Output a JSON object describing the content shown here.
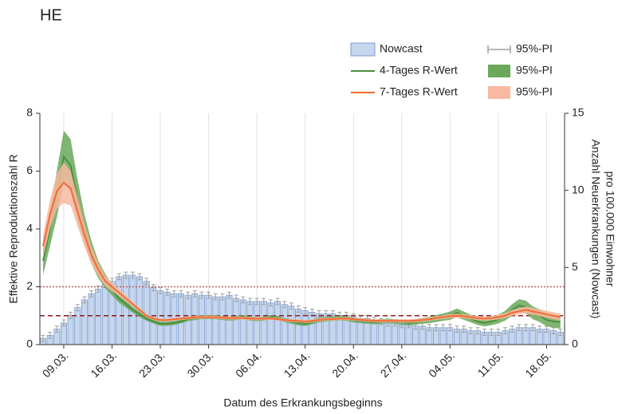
{
  "chart_data": {
    "type": "combo",
    "title": "HE",
    "x_label": "Datum des Erkrankungsbeginns",
    "y_label": "Effektive Reproduktionszahl R",
    "y2_label": [
      "Anzahl Neuerkrankungen (Nowcast)",
      "pro 100.000 Einwohner"
    ],
    "categories": [
      null,
      null,
      null,
      "09.03.",
      null,
      null,
      null,
      null,
      null,
      null,
      "16.03.",
      null,
      null,
      null,
      null,
      null,
      null,
      "23.03.",
      null,
      null,
      null,
      null,
      null,
      null,
      "30.03.",
      null,
      null,
      null,
      null,
      null,
      null,
      "06.04.",
      null,
      null,
      null,
      null,
      null,
      null,
      "13.04.",
      null,
      null,
      null,
      null,
      null,
      null,
      "20.04.",
      null,
      null,
      null,
      null,
      null,
      null,
      "27.04.",
      null,
      null,
      null,
      null,
      null,
      null,
      "04.05.",
      null,
      null,
      null,
      null,
      null,
      null,
      "11.05.",
      null,
      null,
      null,
      null,
      null,
      null,
      "18.05.",
      null,
      null
    ],
    "ylim": [
      0,
      8
    ],
    "yticks": [
      0,
      2,
      4,
      6,
      8
    ],
    "y2lim": [
      0,
      15
    ],
    "y2ticks": [
      0,
      5,
      10,
      15
    ],
    "grid": true,
    "hlines": [
      {
        "value": 2,
        "style": "dotted",
        "color": "#b8605a"
      },
      {
        "value": 1,
        "style": "dashed",
        "color": "#8b1a1a"
      }
    ],
    "series": [
      {
        "name": "Nowcast",
        "type": "bar",
        "axis": "y2",
        "color": "#c5d6ee",
        "error_name": "95%-PI",
        "error_color": "#a0a0a0",
        "values": [
          0.4,
          0.6,
          1.0,
          1.4,
          1.9,
          2.4,
          2.9,
          3.3,
          3.6,
          3.9,
          4.1,
          4.4,
          4.5,
          4.5,
          4.4,
          4.1,
          3.7,
          3.5,
          3.4,
          3.3,
          3.3,
          3.2,
          3.3,
          3.2,
          3.2,
          3.1,
          3.1,
          3.2,
          3.0,
          2.9,
          2.8,
          2.8,
          2.8,
          2.7,
          2.8,
          2.6,
          2.5,
          2.3,
          2.2,
          2.1,
          2.0,
          2.0,
          2.0,
          1.9,
          1.9,
          1.8,
          1.7,
          1.7,
          1.6,
          1.5,
          1.4,
          1.4,
          1.3,
          1.3,
          1.2,
          1.2,
          1.1,
          1.1,
          1.1,
          1.1,
          1.0,
          1.0,
          0.9,
          0.9,
          0.8,
          0.8,
          0.8,
          0.9,
          1.0,
          1.1,
          1.1,
          1.1,
          1.0,
          1.0,
          0.9,
          0.8
        ],
        "error": [
          0.2,
          0.2,
          0.2,
          0.2,
          0.2,
          0.2,
          0.2,
          0.2,
          0.2,
          0.2,
          0.2,
          0.2,
          0.2,
          0.2,
          0.2,
          0.2,
          0.2,
          0.2,
          0.2,
          0.2,
          0.2,
          0.2,
          0.2,
          0.2,
          0.2,
          0.2,
          0.2,
          0.2,
          0.2,
          0.2,
          0.2,
          0.2,
          0.2,
          0.2,
          0.2,
          0.2,
          0.2,
          0.2,
          0.2,
          0.2,
          0.2,
          0.2,
          0.2,
          0.2,
          0.2,
          0.2,
          0.2,
          0.2,
          0.2,
          0.2,
          0.2,
          0.2,
          0.2,
          0.2,
          0.2,
          0.2,
          0.2,
          0.2,
          0.2,
          0.2,
          0.2,
          0.2,
          0.2,
          0.2,
          0.2,
          0.2,
          0.2,
          0.2,
          0.2,
          0.2,
          0.2,
          0.2,
          0.2,
          0.2,
          0.2,
          0.2
        ]
      },
      {
        "name": "4-Tages R-Wert",
        "type": "line",
        "color": "#4c8f3c",
        "band_color": "#6aa85a",
        "band_name": "95%-PI",
        "values": [
          2.9,
          4.0,
          5.2,
          6.5,
          6.2,
          5.0,
          4.0,
          3.2,
          2.6,
          2.2,
          1.9,
          1.6,
          1.4,
          1.2,
          1.05,
          0.9,
          0.8,
          0.72,
          0.72,
          0.75,
          0.8,
          0.88,
          0.92,
          0.95,
          0.95,
          0.95,
          0.92,
          0.9,
          0.92,
          0.95,
          0.9,
          0.88,
          0.9,
          0.95,
          0.92,
          0.85,
          0.8,
          0.75,
          0.72,
          0.78,
          0.85,
          0.88,
          0.9,
          0.92,
          0.9,
          0.85,
          0.82,
          0.8,
          0.78,
          0.8,
          0.82,
          0.8,
          0.78,
          0.75,
          0.78,
          0.82,
          0.85,
          0.9,
          0.95,
          1.0,
          1.1,
          1.0,
          0.9,
          0.8,
          0.75,
          0.8,
          0.88,
          1.0,
          1.2,
          1.35,
          1.3,
          1.1,
          1.0,
          0.85,
          0.8,
          0.78
        ],
        "error": [
          0.5,
          0.6,
          0.8,
          0.9,
          0.9,
          0.7,
          0.5,
          0.4,
          0.3,
          0.25,
          0.2,
          0.15,
          0.12,
          0.1,
          0.1,
          0.08,
          0.07,
          0.07,
          0.07,
          0.07,
          0.07,
          0.07,
          0.07,
          0.07,
          0.07,
          0.07,
          0.07,
          0.07,
          0.07,
          0.07,
          0.07,
          0.07,
          0.07,
          0.07,
          0.07,
          0.07,
          0.08,
          0.08,
          0.08,
          0.08,
          0.08,
          0.08,
          0.08,
          0.08,
          0.08,
          0.08,
          0.08,
          0.08,
          0.08,
          0.08,
          0.08,
          0.08,
          0.09,
          0.09,
          0.1,
          0.1,
          0.11,
          0.12,
          0.13,
          0.14,
          0.15,
          0.14,
          0.13,
          0.12,
          0.12,
          0.13,
          0.15,
          0.17,
          0.2,
          0.22,
          0.22,
          0.22,
          0.22,
          0.22,
          0.22,
          0.22
        ]
      },
      {
        "name": "7-Tages R-Wert",
        "type": "line",
        "color": "#f26b35",
        "band_color": "#f8b9a0",
        "band_name": "95%-PI",
        "values": [
          3.4,
          4.5,
          5.3,
          5.6,
          5.4,
          4.6,
          3.8,
          3.1,
          2.6,
          2.2,
          2.0,
          1.8,
          1.6,
          1.4,
          1.2,
          1.0,
          0.9,
          0.85,
          0.85,
          0.88,
          0.9,
          0.92,
          0.95,
          0.95,
          0.95,
          0.95,
          0.93,
          0.92,
          0.92,
          0.92,
          0.9,
          0.9,
          0.9,
          0.9,
          0.88,
          0.85,
          0.83,
          0.82,
          0.8,
          0.82,
          0.85,
          0.88,
          0.88,
          0.9,
          0.9,
          0.88,
          0.86,
          0.84,
          0.83,
          0.82,
          0.82,
          0.82,
          0.82,
          0.82,
          0.83,
          0.85,
          0.88,
          0.92,
          0.95,
          0.98,
          1.0,
          0.98,
          0.95,
          0.92,
          0.9,
          0.92,
          0.95,
          1.0,
          1.1,
          1.15,
          1.2,
          1.15,
          1.1,
          1.05,
          1.0,
          0.95
        ],
        "error": [
          0.4,
          0.5,
          0.6,
          0.7,
          0.6,
          0.5,
          0.4,
          0.3,
          0.22,
          0.18,
          0.15,
          0.12,
          0.1,
          0.08,
          0.07,
          0.06,
          0.05,
          0.05,
          0.05,
          0.05,
          0.05,
          0.05,
          0.05,
          0.05,
          0.05,
          0.05,
          0.05,
          0.05,
          0.05,
          0.05,
          0.05,
          0.05,
          0.05,
          0.05,
          0.05,
          0.05,
          0.05,
          0.05,
          0.05,
          0.05,
          0.05,
          0.05,
          0.05,
          0.05,
          0.05,
          0.05,
          0.05,
          0.05,
          0.05,
          0.05,
          0.05,
          0.05,
          0.06,
          0.06,
          0.06,
          0.06,
          0.06,
          0.06,
          0.06,
          0.07,
          0.07,
          0.07,
          0.07,
          0.07,
          0.07,
          0.07,
          0.08,
          0.09,
          0.1,
          0.11,
          0.12,
          0.12,
          0.12,
          0.12,
          0.12,
          0.12
        ]
      }
    ]
  }
}
